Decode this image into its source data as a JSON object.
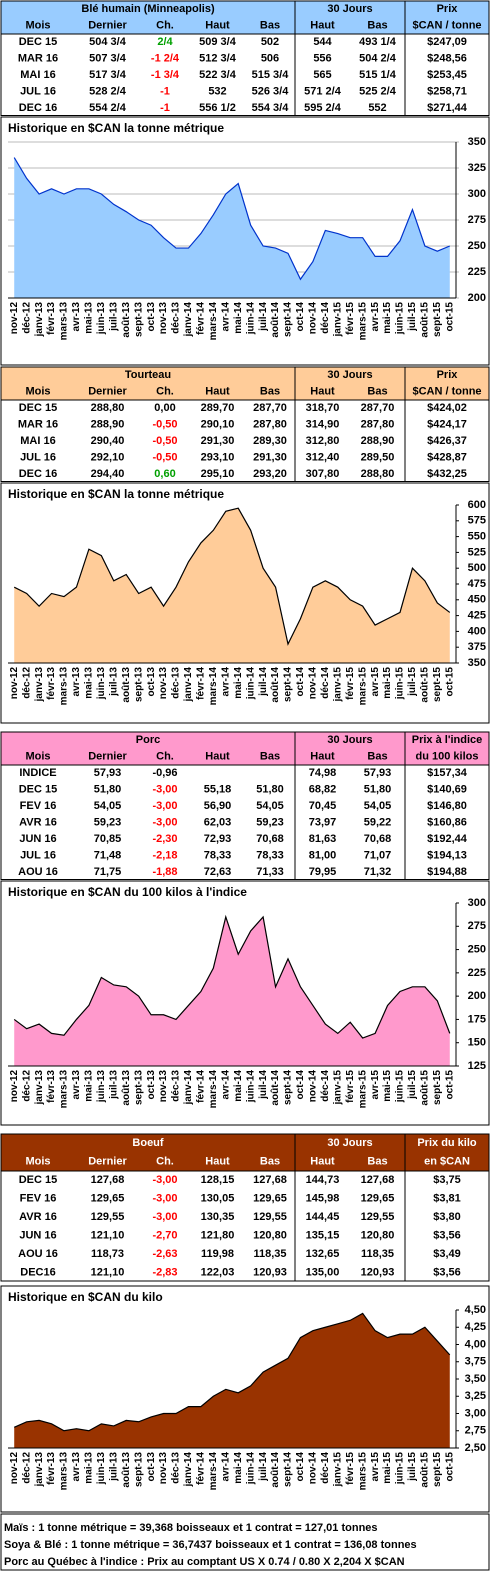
{
  "sections": [
    {
      "table": {
        "title": "Blé humain (Minneapolis)",
        "period": "30 Jours",
        "price": "Prix",
        "columns": [
          "Mois",
          "Dernier",
          "Ch.",
          "Haut",
          "Bas",
          "Haut",
          "Bas",
          "$CAN / tonne"
        ],
        "rows": [
          [
            "DEC 15",
            "504 3/4",
            "2/4",
            "509 3/4",
            "502",
            "544",
            "493 1/4",
            "$247,09"
          ],
          [
            "MAR 16",
            "507 3/4",
            "-1 2/4",
            "512 3/4",
            "506",
            "556",
            "504 2/4",
            "$248,56"
          ],
          [
            "MAI 16",
            "517 3/4",
            "-1 3/4",
            "522 3/4",
            "515 3/4",
            "565",
            "515 1/4",
            "$253,45"
          ],
          [
            "JUL 16",
            "528 2/4",
            "-1",
            "532",
            "526 3/4",
            "571 2/4",
            "525 2/4",
            "$258,71"
          ],
          [
            "DEC 16",
            "554 2/4",
            "-1",
            "556 1/2",
            "554 3/4",
            "595 2/4",
            "552",
            "$271,44"
          ]
        ],
        "change_colors": [
          "#00a000",
          "#ff0000",
          "#ff0000",
          "#ff0000",
          "#ff0000"
        ],
        "header_color": "#99ccff",
        "header_text_color": "#000000"
      },
      "chart_data": {
        "type": "area",
        "title": "Historique en $CAN la tonne métrique",
        "categories": [
          "nov-12",
          "déc-12",
          "janv-13",
          "févr-13",
          "mars-13",
          "avr-13",
          "mai-13",
          "juin-13",
          "juil-13",
          "août-13",
          "sept-13",
          "oct-13",
          "nov-13",
          "déc-13",
          "janv-14",
          "févr-14",
          "mars-14",
          "avr-14",
          "mai-14",
          "juin-14",
          "juil-14",
          "août-14",
          "sept-14",
          "oct-14",
          "nov-14",
          "déc-14",
          "janv-15",
          "févr-15",
          "mars-15",
          "avr-15",
          "mai-15",
          "juin-15",
          "juil-15",
          "août-15",
          "sept-15",
          "oct-15"
        ],
        "values": [
          335,
          315,
          300,
          305,
          300,
          305,
          305,
          300,
          290,
          283,
          275,
          270,
          258,
          248,
          248,
          262,
          280,
          300,
          310,
          270,
          250,
          248,
          243,
          218,
          235,
          265,
          262,
          258,
          258,
          240,
          240,
          255,
          285,
          250,
          245,
          250
        ],
        "color": "#99ccff",
        "line_color": "#0033cc",
        "ylim": [
          200,
          350
        ],
        "yticks": [
          200,
          225,
          250,
          275,
          300,
          325,
          350
        ],
        "grid": true
      }
    },
    {
      "table": {
        "title": "Tourteau",
        "period": "30 Jours",
        "price": "Prix",
        "columns": [
          "Mois",
          "Dernier",
          "Ch.",
          "Haut",
          "Bas",
          "Haut",
          "Bas",
          "$CAN / tonne"
        ],
        "rows": [
          [
            "DEC 15",
            "288,80",
            "0,00",
            "289,70",
            "287,70",
            "318,70",
            "287,70",
            "$424,02"
          ],
          [
            "MAR 16",
            "288,90",
            "-0,50",
            "290,10",
            "287,80",
            "314,90",
            "287,80",
            "$424,17"
          ],
          [
            "MAI 16",
            "290,40",
            "-0,50",
            "291,30",
            "289,30",
            "312,80",
            "288,90",
            "$426,37"
          ],
          [
            "JUL 16",
            "292,10",
            "-0,50",
            "293,10",
            "291,30",
            "312,40",
            "289,50",
            "$428,87"
          ],
          [
            "DEC 16",
            "294,40",
            "0,60",
            "295,10",
            "293,20",
            "307,80",
            "288,80",
            "$432,25"
          ]
        ],
        "change_colors": [
          "#000000",
          "#ff0000",
          "#ff0000",
          "#ff0000",
          "#00a000"
        ],
        "header_color": "#ffcc99",
        "header_text_color": "#000000"
      },
      "chart_data": {
        "type": "area",
        "title": "Historique en $CAN la tonne métrique",
        "categories": [
          "nov-12",
          "déc-12",
          "janv-13",
          "févr-13",
          "mars-13",
          "avr-13",
          "mai-13",
          "juin-13",
          "juil-13",
          "août-13",
          "sept-13",
          "oct-13",
          "nov-13",
          "déc-13",
          "janv-14",
          "févr-14",
          "mars-14",
          "avr-14",
          "mai-14",
          "juin-14",
          "juil-14",
          "août-14",
          "sept-14",
          "oct-14",
          "nov-14",
          "déc-14",
          "janv-15",
          "févr-15",
          "mars-15",
          "avr-15",
          "mai-15",
          "juin-15",
          "juil-15",
          "août-15",
          "sept-15",
          "oct-15"
        ],
        "values": [
          470,
          460,
          440,
          460,
          455,
          470,
          530,
          520,
          480,
          490,
          460,
          470,
          440,
          470,
          510,
          540,
          560,
          590,
          595,
          560,
          500,
          470,
          380,
          420,
          470,
          480,
          470,
          450,
          440,
          410,
          420,
          430,
          500,
          480,
          445,
          430
        ],
        "color": "#ffcc99",
        "line_color": "#000000",
        "ylim": [
          350,
          600
        ],
        "yticks": [
          350,
          375,
          400,
          425,
          450,
          475,
          500,
          525,
          550,
          575,
          600
        ],
        "grid": false
      }
    },
    {
      "table": {
        "title": "Porc",
        "period": "30 Jours",
        "price": "Prix à l'indice",
        "columns": [
          "Mois",
          "Dernier",
          "Ch.",
          "Haut",
          "Bas",
          "Haut",
          "Bas",
          "du 100 kilos"
        ],
        "rows": [
          [
            "INDICE",
            "57,93",
            "-0,96",
            null,
            null,
            "74,98",
            "57,93",
            "$157,34"
          ],
          [
            "DEC 15",
            "51,80",
            "-3,00",
            "55,18",
            "51,80",
            "68,82",
            "51,80",
            "$140,69"
          ],
          [
            "FEV 16",
            "54,05",
            "-3,00",
            "56,90",
            "54,05",
            "70,45",
            "54,05",
            "$146,80"
          ],
          [
            "AVR 16",
            "59,23",
            "-3,00",
            "62,03",
            "59,23",
            "73,97",
            "59,22",
            "$160,86"
          ],
          [
            "JUN 16",
            "70,85",
            "-2,30",
            "72,93",
            "70,68",
            "81,63",
            "70,68",
            "$192,44"
          ],
          [
            "JUL 16",
            "71,48",
            "-2,18",
            "78,33",
            "78,33",
            "81,00",
            "71,07",
            "$194,13"
          ],
          [
            "AOU 16",
            "71,75",
            "-1,88",
            "72,63",
            "71,33",
            "79,95",
            "71,32",
            "$194,88"
          ]
        ],
        "change_colors": [
          "#000000",
          "#ff0000",
          "#ff0000",
          "#ff0000",
          "#ff0000",
          "#ff0000",
          "#ff0000"
        ],
        "header_color": "#ff99cc",
        "header_text_color": "#000000"
      },
      "chart_data": {
        "type": "area",
        "title": "Historique en $CAN du 100 kilos à l'indice",
        "categories": [
          "nov-12",
          "déc-12",
          "janv-13",
          "févr-13",
          "mars-13",
          "avr-13",
          "mai-13",
          "juin-13",
          "juil-13",
          "août-13",
          "sept-13",
          "oct-13",
          "nov-13",
          "déc-13",
          "janv-14",
          "févr-14",
          "mars-14",
          "avr-14",
          "mai-14",
          "juin-14",
          "juil-14",
          "août-14",
          "sept-14",
          "oct-14",
          "nov-14",
          "déc-14",
          "janv-15",
          "févr-15",
          "mars-15",
          "avr-15",
          "mai-15",
          "juin-15",
          "juil-15",
          "août-15",
          "sept-15",
          "oct-15"
        ],
        "values": [
          175,
          165,
          170,
          160,
          158,
          175,
          190,
          220,
          212,
          210,
          200,
          180,
          180,
          175,
          190,
          205,
          230,
          285,
          245,
          270,
          285,
          210,
          240,
          210,
          190,
          170,
          160,
          172,
          155,
          160,
          190,
          205,
          210,
          210,
          195,
          160
        ],
        "color": "#ff99cc",
        "line_color": "#000000",
        "ylim": [
          125,
          300
        ],
        "yticks": [
          125,
          150,
          175,
          200,
          225,
          250,
          275,
          300
        ],
        "grid": false
      }
    },
    {
      "table": {
        "title": "Boeuf",
        "period": "30 Jours",
        "price": "Prix du kilo",
        "columns": [
          "Mois",
          "Dernier",
          "Ch.",
          "Haut",
          "Bas",
          "Haut",
          "Bas",
          "en $CAN"
        ],
        "rows": [
          [
            "DEC 15",
            "127,68",
            "-3,00",
            "128,15",
            "127,68",
            "144,73",
            "127,68",
            "$3,75"
          ],
          [
            "FEV 16",
            "129,65",
            "-3,00",
            "130,05",
            "129,65",
            "145,98",
            "129,65",
            "$3,81"
          ],
          [
            "AVR 16",
            "129,55",
            "-3,00",
            "130,35",
            "129,55",
            "144,45",
            "129,55",
            "$3,80"
          ],
          [
            "JUN 16",
            "121,10",
            "-2,70",
            "121,80",
            "120,80",
            "135,15",
            "120,80",
            "$3,56"
          ],
          [
            "AOU 16",
            "118,73",
            "-2,63",
            "119,98",
            "118,35",
            "132,65",
            "118,35",
            "$3,49"
          ],
          [
            "DEC16",
            "121,10",
            "-2,83",
            "122,03",
            "120,93",
            "135,00",
            "120,93",
            "$3,56"
          ]
        ],
        "change_colors": [
          "#ff0000",
          "#ff0000",
          "#ff0000",
          "#ff0000",
          "#ff0000",
          "#ff0000"
        ],
        "header_color": "#993300",
        "header_text_color": "#ffffff"
      },
      "chart_data": {
        "type": "area",
        "title": "Historique en $CAN du kilo",
        "categories": [
          "nov-12",
          "déc-12",
          "janv-13",
          "févr-13",
          "mars-13",
          "avr-13",
          "mai-13",
          "juin-13",
          "juil-13",
          "août-13",
          "sept-13",
          "oct-13",
          "nov-13",
          "déc-13",
          "janv-14",
          "févr-14",
          "mars-14",
          "avr-14",
          "mai-14",
          "juin-14",
          "juil-14",
          "août-14",
          "sept-14",
          "oct-14",
          "nov-14",
          "déc-14",
          "janv-15",
          "févr-15",
          "mars-15",
          "avr-15",
          "mai-15",
          "juin-15",
          "juil-15",
          "août-15",
          "sept-15",
          "oct-15"
        ],
        "values": [
          2.8,
          2.88,
          2.9,
          2.85,
          2.75,
          2.78,
          2.75,
          2.85,
          2.82,
          2.9,
          2.88,
          2.95,
          3.0,
          3.0,
          3.1,
          3.1,
          3.25,
          3.35,
          3.3,
          3.4,
          3.6,
          3.7,
          3.8,
          4.1,
          4.2,
          4.25,
          4.3,
          4.35,
          4.45,
          4.2,
          4.1,
          4.15,
          4.15,
          4.25,
          4.05,
          3.85
        ],
        "color": "#993300",
        "line_color": "#000000",
        "ylim": [
          2.5,
          4.5
        ],
        "yticks": [
          {
            "value": 2.5,
            "label": "2,50"
          },
          {
            "value": 2.75,
            "label": "2,75"
          },
          {
            "value": 3,
            "label": "3,00"
          },
          {
            "value": 3.25,
            "label": "3,25"
          },
          {
            "value": 3.5,
            "label": "3,50"
          },
          {
            "value": 3.75,
            "label": "3,75"
          },
          {
            "value": 4,
            "label": "4,00"
          },
          {
            "value": 4.25,
            "label": "4,25"
          },
          {
            "value": 4.5,
            "label": "4,50"
          }
        ],
        "grid": false
      }
    }
  ],
  "notes": [
    "Maïs : 1 tonne métrique = 39,368 boisseaux et 1 contrat = 127,01 tonnes",
    "Soya & Blé : 1 tonne métrique = 36,7437 boisseaux et 1 contrat = 136,08 tonnes",
    "Porc au Québec à l'indice : Prix au comptant US X 0.74 / 0.80 X 2,204 X $CAN"
  ]
}
